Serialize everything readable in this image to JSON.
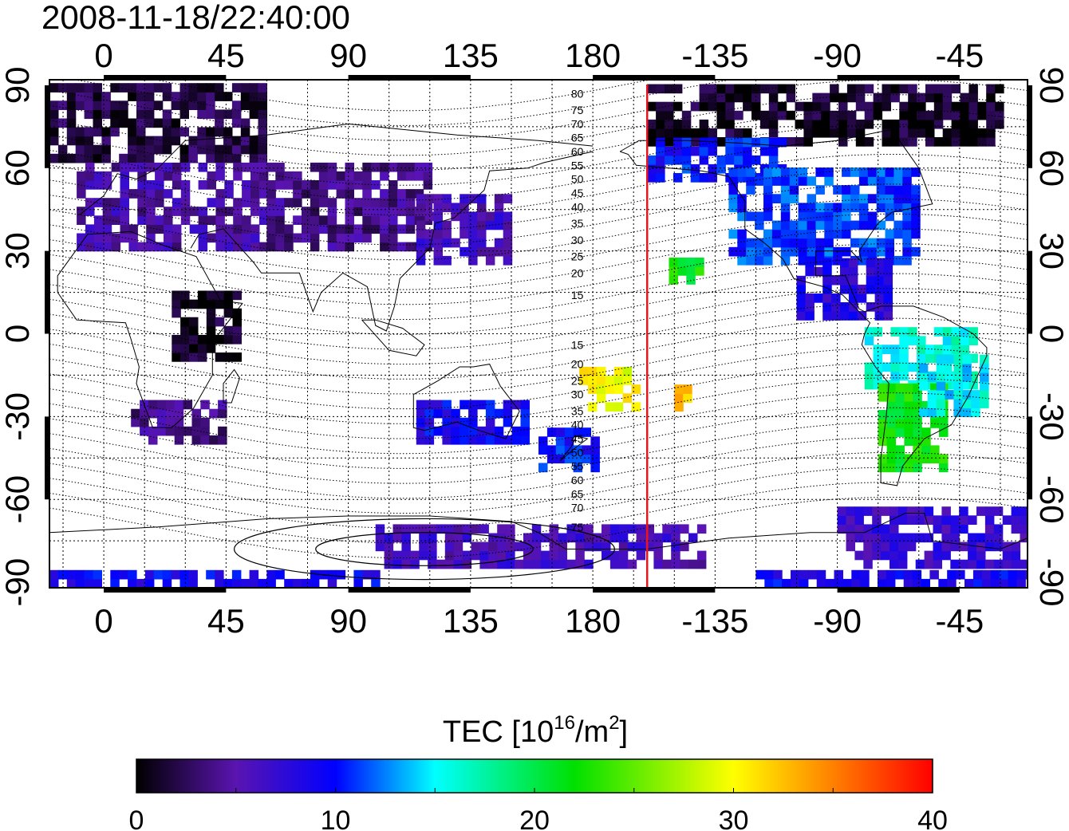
{
  "title": "2008-11-18/22:40:00",
  "map": {
    "x_tick_labels": [
      {
        "lon": 0,
        "label": "0"
      },
      {
        "lon": 45,
        "label": "45"
      },
      {
        "lon": 90,
        "label": "90"
      },
      {
        "lon": 135,
        "label": "135"
      },
      {
        "lon": 180,
        "label": "180"
      },
      {
        "lon": 225,
        "label": "-135"
      },
      {
        "lon": 270,
        "label": "-90"
      },
      {
        "lon": 315,
        "label": "-45"
      }
    ],
    "y_tick_labels": [
      {
        "lat": 90,
        "label": "90"
      },
      {
        "lat": 60,
        "label": "60"
      },
      {
        "lat": 30,
        "label": "30"
      },
      {
        "lat": 0,
        "label": "0"
      },
      {
        "lat": -30,
        "label": "-30"
      },
      {
        "lat": -60,
        "label": "-60"
      },
      {
        "lat": -90,
        "label": "-90"
      }
    ],
    "lon_range": [
      -20,
      340
    ],
    "lat_range": [
      -92,
      92
    ],
    "grid": true,
    "terminator_lon": 200,
    "terminator_color": "#e8141e",
    "contour_labels": [
      {
        "lat": 87,
        "label": "80"
      },
      {
        "lat": 81,
        "label": "75"
      },
      {
        "lat": 76,
        "label": "70"
      },
      {
        "lat": 71,
        "label": "65"
      },
      {
        "lat": 66,
        "label": "60"
      },
      {
        "lat": 61,
        "label": "55"
      },
      {
        "lat": 56,
        "label": "50"
      },
      {
        "lat": 51,
        "label": "45"
      },
      {
        "lat": 46,
        "label": "40"
      },
      {
        "lat": 40,
        "label": "35"
      },
      {
        "lat": 34,
        "label": "30"
      },
      {
        "lat": 28,
        "label": "25"
      },
      {
        "lat": 22,
        "label": "20"
      },
      {
        "lat": 14,
        "label": "15"
      },
      {
        "lat": -4,
        "label": "15"
      },
      {
        "lat": -11,
        "label": "20"
      },
      {
        "lat": -17,
        "label": "25"
      },
      {
        "lat": -22,
        "label": "30"
      },
      {
        "lat": -28,
        "label": "35"
      },
      {
        "lat": -33,
        "label": "40"
      },
      {
        "lat": -38,
        "label": "45"
      },
      {
        "lat": -43,
        "label": "50"
      },
      {
        "lat": -48,
        "label": "55"
      },
      {
        "lat": -53,
        "label": "60"
      },
      {
        "lat": -58,
        "label": "65"
      },
      {
        "lat": -63,
        "label": "70"
      },
      {
        "lat": -70,
        "label": "75"
      }
    ]
  },
  "chart_data": {
    "type": "heatmap",
    "title": "2008-11-18/22:40:00",
    "xlim": [
      -20,
      340
    ],
    "ylim": [
      -92,
      92
    ],
    "value_range": [
      0,
      40
    ],
    "regions": [
      {
        "lon": [
          -20,
          60
        ],
        "lat": [
          62,
          88
        ],
        "value": 2
      },
      {
        "lon": [
          200,
          330
        ],
        "lat": [
          68,
          88
        ],
        "value": 1
      },
      {
        "lon": [
          -10,
          60
        ],
        "lat": [
          30,
          60
        ],
        "value": 5
      },
      {
        "lon": [
          60,
          120
        ],
        "lat": [
          30,
          60
        ],
        "value": 4
      },
      {
        "lon": [
          115,
          150
        ],
        "lat": [
          25,
          50
        ],
        "value": 6
      },
      {
        "lon": [
          200,
          250
        ],
        "lat": [
          55,
          70
        ],
        "value": 10
      },
      {
        "lon": [
          230,
          300
        ],
        "lat": [
          25,
          60
        ],
        "value": 11
      },
      {
        "lon": [
          255,
          290
        ],
        "lat": [
          5,
          25
        ],
        "value": 8
      },
      {
        "lon": [
          280,
          320
        ],
        "lat": [
          -20,
          0
        ],
        "value": 16
      },
      {
        "lon": [
          285,
          310
        ],
        "lat": [
          -50,
          -20
        ],
        "value": 22
      },
      {
        "lon": [
          300,
          325
        ],
        "lat": [
          -30,
          -10
        ],
        "value": 15
      },
      {
        "lon": [
          10,
          45
        ],
        "lat": [
          -40,
          -25
        ],
        "value": 4
      },
      {
        "lon": [
          25,
          50
        ],
        "lat": [
          -10,
          15
        ],
        "value": 1
      },
      {
        "lon": [
          115,
          155
        ],
        "lat": [
          -40,
          -25
        ],
        "value": 9
      },
      {
        "lon": [
          160,
          180
        ],
        "lat": [
          -50,
          -35
        ],
        "value": 10
      },
      {
        "lon": [
          175,
          195
        ],
        "lat": [
          -28,
          -15
        ],
        "value": 30
      },
      {
        "lon": [
          210,
          215
        ],
        "lat": [
          -28,
          -20
        ],
        "value": 33
      },
      {
        "lon": [
          208,
          218
        ],
        "lat": [
          18,
          25
        ],
        "value": 22
      },
      {
        "lon": [
          100,
          220
        ],
        "lat": [
          -85,
          -70
        ],
        "value": 6
      },
      {
        "lon": [
          270,
          340
        ],
        "lat": [
          -85,
          -65
        ],
        "value": 7
      },
      {
        "lon": [
          -20,
          100
        ],
        "lat": [
          -92,
          -88
        ],
        "value": 9
      },
      {
        "lon": [
          240,
          340
        ],
        "lat": [
          -92,
          -88
        ],
        "value": 9
      }
    ]
  },
  "colorbar": {
    "label": "TEC  [10",
    "label_sup": "16",
    "label_unit": "/m",
    "label_unit_sup": "2",
    "label_end": "]",
    "min": 0,
    "max": 40,
    "ticks": [
      {
        "value": 0,
        "label": "0"
      },
      {
        "value": 10,
        "label": "10"
      },
      {
        "value": 20,
        "label": "20"
      },
      {
        "value": 30,
        "label": "30"
      },
      {
        "value": 40,
        "label": "40"
      }
    ],
    "stops": [
      {
        "value": 0,
        "color": "#000000"
      },
      {
        "value": 5,
        "color": "#5a14b0"
      },
      {
        "value": 10,
        "color": "#0000ff"
      },
      {
        "value": 15,
        "color": "#00ffff"
      },
      {
        "value": 22,
        "color": "#00e000"
      },
      {
        "value": 30,
        "color": "#ffff00"
      },
      {
        "value": 35,
        "color": "#ff8000"
      },
      {
        "value": 40,
        "color": "#ff0000"
      }
    ]
  }
}
